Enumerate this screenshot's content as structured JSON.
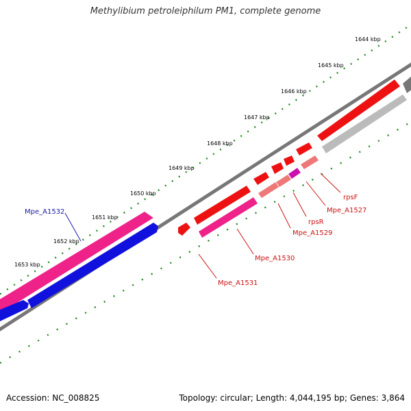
{
  "title": "Methylibium petroleiphilum PM1, complete genome",
  "footer": {
    "accession": "Accession: NC_008825",
    "summary": "Topology: circular; Length: 4,044,195 bp; Genes: 3,864"
  },
  "ticks": [
    "1644 kbp",
    "1645 kbp",
    "1646 kbp",
    "1647 kbp",
    "1648 kbp",
    "1649 kbp",
    "1650 kbp",
    "1651 kbp",
    "1652 kbp",
    "1653 kbp"
  ],
  "gene_labels": {
    "mpe_a1532": "Mpe_A1532",
    "rpsf": "rpsF",
    "mpe_a1527": "Mpe_A1527",
    "rpsr": "rpsR",
    "mpe_a1529": "Mpe_A1529",
    "mpe_a1530": "Mpe_A1530",
    "mpe_a1531": "Mpe_A1531"
  },
  "colors": {
    "red": "#ee1111",
    "magenta": "#ee2288",
    "blue": "#1111dd",
    "pink": "#ee7777",
    "purple": "#cc11aa",
    "silver": "#bbbbbb",
    "gray": "#777777",
    "tick_green": "#228822",
    "blue_label": "#1a1aaa",
    "red_label": "#cc1111"
  }
}
